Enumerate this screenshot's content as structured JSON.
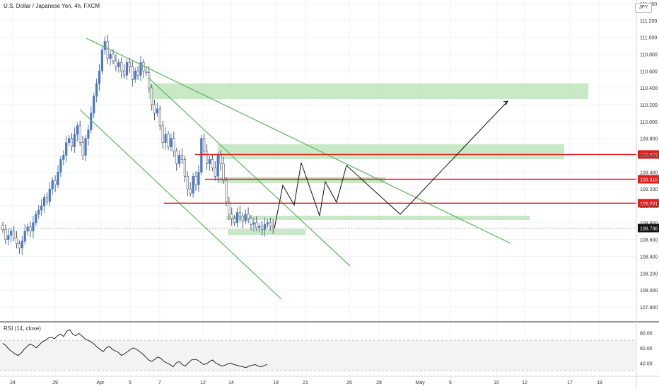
{
  "header": {
    "title": "U.S. Dollar / Japanese Yen, 4h, FXCM",
    "symbol_badge": "JPY"
  },
  "rsi": {
    "label": "RSI (14, close)",
    "ticks": [
      "80.00",
      "60.00",
      "40.00"
    ],
    "levels": [
      70,
      30
    ],
    "values": [
      66,
      63,
      58,
      55,
      52,
      50,
      53,
      58,
      62,
      65,
      63,
      60,
      64,
      68,
      70,
      73,
      74,
      72,
      76,
      78,
      75,
      82,
      84,
      78,
      76,
      79,
      76,
      72,
      70,
      68,
      65,
      61,
      58,
      55,
      60,
      62,
      58,
      56,
      54,
      50,
      52,
      55,
      58,
      60,
      58,
      55,
      52,
      48,
      44,
      42,
      45,
      48,
      46,
      42,
      40,
      38,
      35,
      40,
      42,
      38,
      36,
      40,
      44,
      45,
      44,
      41,
      38,
      39,
      42,
      44,
      40,
      38,
      36,
      37,
      39,
      40,
      38,
      37,
      36,
      35,
      34,
      36,
      37,
      38,
      36,
      35,
      37,
      38
    ]
  },
  "price_axis": {
    "ticks": [
      "111.400",
      "111.200",
      "111.000",
      "110.800",
      "110.600",
      "110.400",
      "110.200",
      "110.000",
      "109.800",
      "109.600",
      "109.400",
      "109.200",
      "109.000",
      "108.800",
      "108.600",
      "108.400",
      "108.200",
      "108.000",
      "107.800"
    ]
  },
  "time_axis": {
    "labels": [
      "24",
      "29",
      "Apr",
      "5",
      "7",
      "12",
      "14",
      "19",
      "21",
      "26",
      "28",
      "May",
      "5",
      "10",
      "12",
      "17",
      "19"
    ]
  },
  "colors": {
    "up": "#4a78c6",
    "down": "#555a66",
    "trend": "#5cb85c",
    "zone": "#b7e2b3",
    "level": "#e31b1b",
    "tag": "#e31b1b",
    "price_tag": "#111111"
  },
  "horizontal_levels": [
    {
      "price": 109.609,
      "label": "109.609"
    },
    {
      "price": 109.315,
      "label": "109.315"
    },
    {
      "price": 109.031,
      "label": "109.031"
    }
  ],
  "current_price": {
    "price": 108.736,
    "label": "108.736"
  },
  "chart_data": {
    "type": "candlestick",
    "title": "U.S. Dollar / Japanese Yen, 4h, FXCM",
    "ylim": [
      107.7,
      111.4
    ],
    "close_series": [
      108.72,
      108.6,
      108.65,
      108.7,
      108.62,
      108.55,
      108.5,
      108.58,
      108.7,
      108.75,
      108.7,
      108.8,
      108.9,
      108.95,
      109.0,
      109.1,
      109.05,
      109.2,
      109.3,
      109.25,
      109.4,
      109.55,
      109.6,
      109.75,
      109.8,
      109.7,
      109.85,
      109.95,
      109.75,
      109.6,
      109.8,
      109.9,
      110.1,
      110.3,
      110.45,
      110.6,
      110.85,
      110.95,
      110.75,
      110.8,
      110.72,
      110.65,
      110.7,
      110.6,
      110.55,
      110.7,
      110.65,
      110.5,
      110.6,
      110.55,
      110.7,
      110.6,
      110.58,
      110.4,
      110.2,
      110.1,
      110.15,
      109.95,
      109.75,
      109.85,
      109.7,
      109.8,
      109.65,
      109.5,
      109.6,
      109.55,
      109.35,
      109.2,
      109.15,
      109.35,
      109.25,
      109.4,
      109.8,
      109.65,
      109.5,
      109.55,
      109.45,
      109.35,
      109.6,
      109.5,
      109.3,
      109.05,
      108.9,
      108.85,
      108.8,
      108.92,
      108.88,
      108.82,
      108.9,
      108.85,
      108.78,
      108.8,
      108.74,
      108.76,
      108.72,
      108.78,
      108.8,
      108.76,
      108.74
    ]
  }
}
